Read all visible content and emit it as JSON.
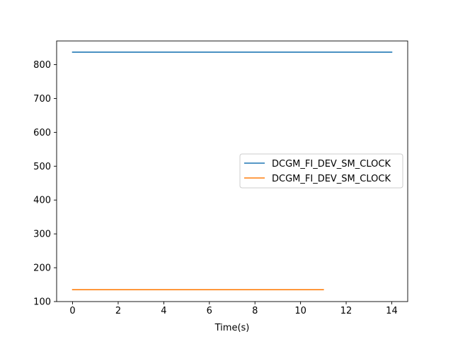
{
  "chart_data": {
    "type": "line",
    "title": "",
    "xlabel": "Time(s)",
    "ylabel": "",
    "xlim": [
      -0.7,
      14.7
    ],
    "ylim": [
      100,
      870
    ],
    "xticks": [
      0,
      2,
      4,
      6,
      8,
      10,
      12,
      14
    ],
    "yticks": [
      100,
      200,
      300,
      400,
      500,
      600,
      700,
      800
    ],
    "grid": false,
    "legend_position": "center-right",
    "series": [
      {
        "name": "DCGM_FI_DEV_SM_CLOCK",
        "color": "#1f77b4",
        "x": [
          0,
          1,
          2,
          3,
          4,
          5,
          6,
          7,
          8,
          9,
          10,
          11,
          12,
          13,
          14
        ],
        "y": [
          837,
          837,
          837,
          837,
          837,
          837,
          837,
          837,
          837,
          837,
          837,
          837,
          837,
          837,
          837
        ]
      },
      {
        "name": "DCGM_FI_DEV_SM_CLOCK",
        "color": "#ff7f0e",
        "x": [
          0,
          1,
          2,
          3,
          4,
          5,
          6,
          7,
          8,
          9,
          10,
          11
        ],
        "y": [
          135,
          135,
          135,
          135,
          135,
          135,
          135,
          135,
          135,
          135,
          135,
          135
        ]
      }
    ]
  }
}
